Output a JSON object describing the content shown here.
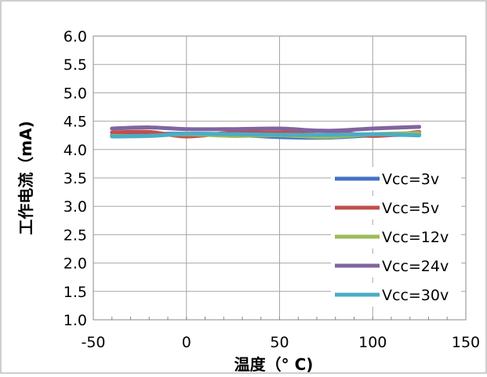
{
  "chart_data": {
    "type": "line",
    "title": "",
    "xlabel": "温度（° C)",
    "ylabel": "工作电流（mA)",
    "xlim": [
      -50,
      150
    ],
    "ylim": [
      1.0,
      6.0
    ],
    "x_ticks": [
      "-50",
      "0",
      "50",
      "100",
      "150"
    ],
    "y_ticks": [
      "1.0",
      "1.5",
      "2.0",
      "2.5",
      "3.0",
      "3.5",
      "4.0",
      "4.5",
      "5.0",
      "5.5",
      "6.0"
    ],
    "grid": true,
    "legend_position": "right",
    "series": [
      {
        "name": "Vcc=3v",
        "color": "#4472C4",
        "x": [
          -40,
          -20,
          0,
          25,
          50,
          75,
          100,
          125
        ],
        "y": [
          4.25,
          4.27,
          4.28,
          4.26,
          4.22,
          4.21,
          4.25,
          4.26
        ]
      },
      {
        "name": "Vcc=5v",
        "color": "#C0504D",
        "x": [
          -40,
          -20,
          0,
          25,
          50,
          75,
          100,
          125
        ],
        "y": [
          4.3,
          4.31,
          4.23,
          4.3,
          4.3,
          4.33,
          4.24,
          4.31
        ]
      },
      {
        "name": "Vcc=12v",
        "color": "#9BBB59",
        "x": [
          -40,
          -20,
          0,
          25,
          50,
          75,
          100,
          125
        ],
        "y": [
          4.24,
          4.24,
          4.27,
          4.24,
          4.25,
          4.22,
          4.27,
          4.29
        ]
      },
      {
        "name": "Vcc=24v",
        "color": "#8064A2",
        "x": [
          -40,
          -20,
          0,
          25,
          50,
          75,
          100,
          125
        ],
        "y": [
          4.37,
          4.39,
          4.36,
          4.36,
          4.37,
          4.33,
          4.37,
          4.4
        ]
      },
      {
        "name": "Vcc=30v",
        "color": "#4BACC6",
        "x": [
          -40,
          -20,
          0,
          25,
          50,
          75,
          100,
          125
        ],
        "y": [
          4.23,
          4.24,
          4.28,
          4.27,
          4.26,
          4.26,
          4.27,
          4.25
        ]
      }
    ]
  }
}
